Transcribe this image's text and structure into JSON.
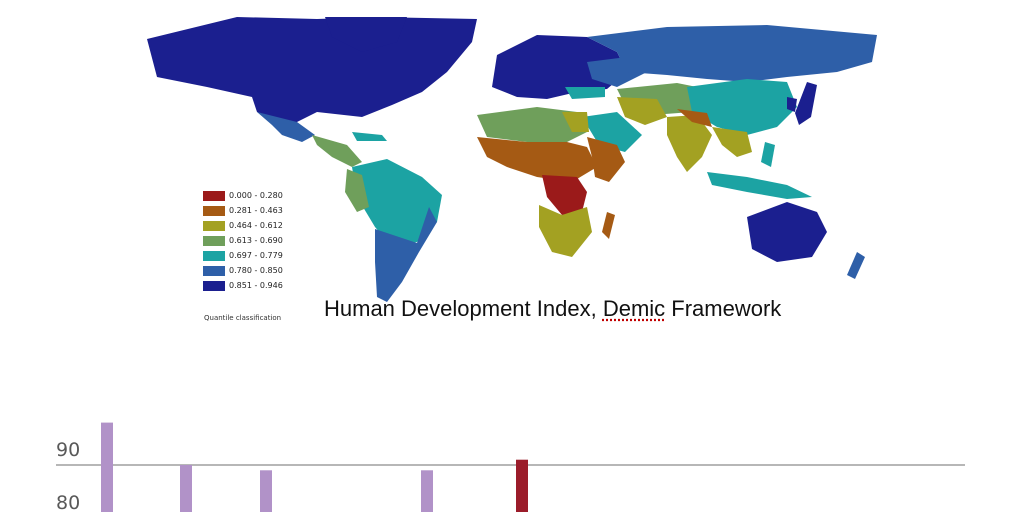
{
  "map": {
    "caption": {
      "main": "Human Development Index, ",
      "underlined": "Demic",
      "tail": " Framework"
    },
    "classification_note": "Quantile classification",
    "legend": [
      {
        "label": "0.000 - 0.280",
        "color": "#9b1a1a"
      },
      {
        "label": "0.281 - 0.463",
        "color": "#a55a14"
      },
      {
        "label": "0.464 - 0.612",
        "color": "#a3a122"
      },
      {
        "label": "0.613 - 0.690",
        "color": "#6f9f5b"
      },
      {
        "label": "0.697 - 0.779",
        "color": "#1ca3a3"
      },
      {
        "label": "0.780 - 0.850",
        "color": "#2e5fa8"
      },
      {
        "label": "0.851 - 0.946",
        "color": "#1b1f8f"
      }
    ]
  },
  "chart_data": {
    "type": "bar",
    "y_tick_labels": [
      "90",
      "80"
    ],
    "gridline_at": 90,
    "bars": [
      {
        "value": 98,
        "color": "#b192c8"
      },
      {
        "value": 90,
        "color": "#b192c8"
      },
      {
        "value": 89,
        "color": "#b192c8"
      },
      {
        "value": 89,
        "color": "#b192c8"
      },
      {
        "value": 91,
        "color": "#9b1c2a"
      }
    ]
  }
}
